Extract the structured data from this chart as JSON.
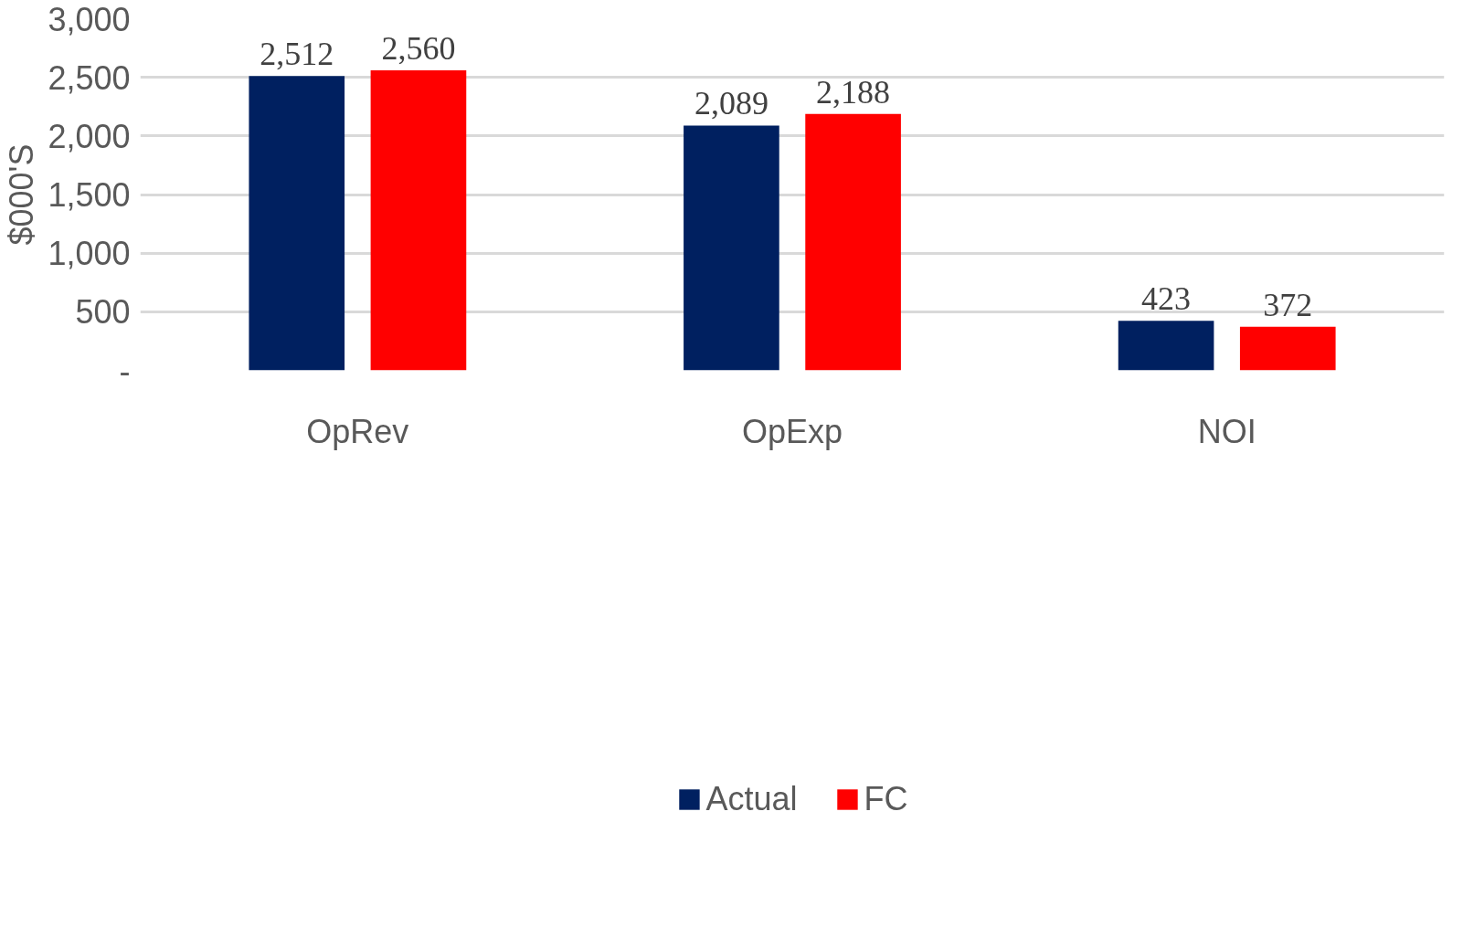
{
  "chart_data": {
    "type": "bar",
    "categories": [
      "OpRev",
      "OpExp",
      "NOI"
    ],
    "ylabel": "$000'S",
    "series": [
      {
        "name": "Actual",
        "color": "#002060",
        "values": [
          2512,
          2089,
          423
        ],
        "value_labels": [
          "2,512",
          "2,089",
          "423"
        ]
      },
      {
        "name": "FC",
        "color": "#ff0000",
        "values": [
          2560,
          2188,
          372
        ],
        "value_labels": [
          "2,560",
          "2,188",
          "372"
        ]
      }
    ],
    "ylim": [
      0,
      3000
    ],
    "yticks": [
      {
        "value": 0,
        "label": "-"
      },
      500,
      {
        "value": 1000,
        "label": "1,000"
      },
      {
        "value": 1500,
        "label": "1,500"
      },
      {
        "value": 2000,
        "label": "2,000"
      },
      {
        "value": 2500,
        "label": "2,500"
      },
      {
        "value": 3000,
        "label": "3,000"
      }
    ],
    "grid": "y",
    "legend": "bottom"
  }
}
